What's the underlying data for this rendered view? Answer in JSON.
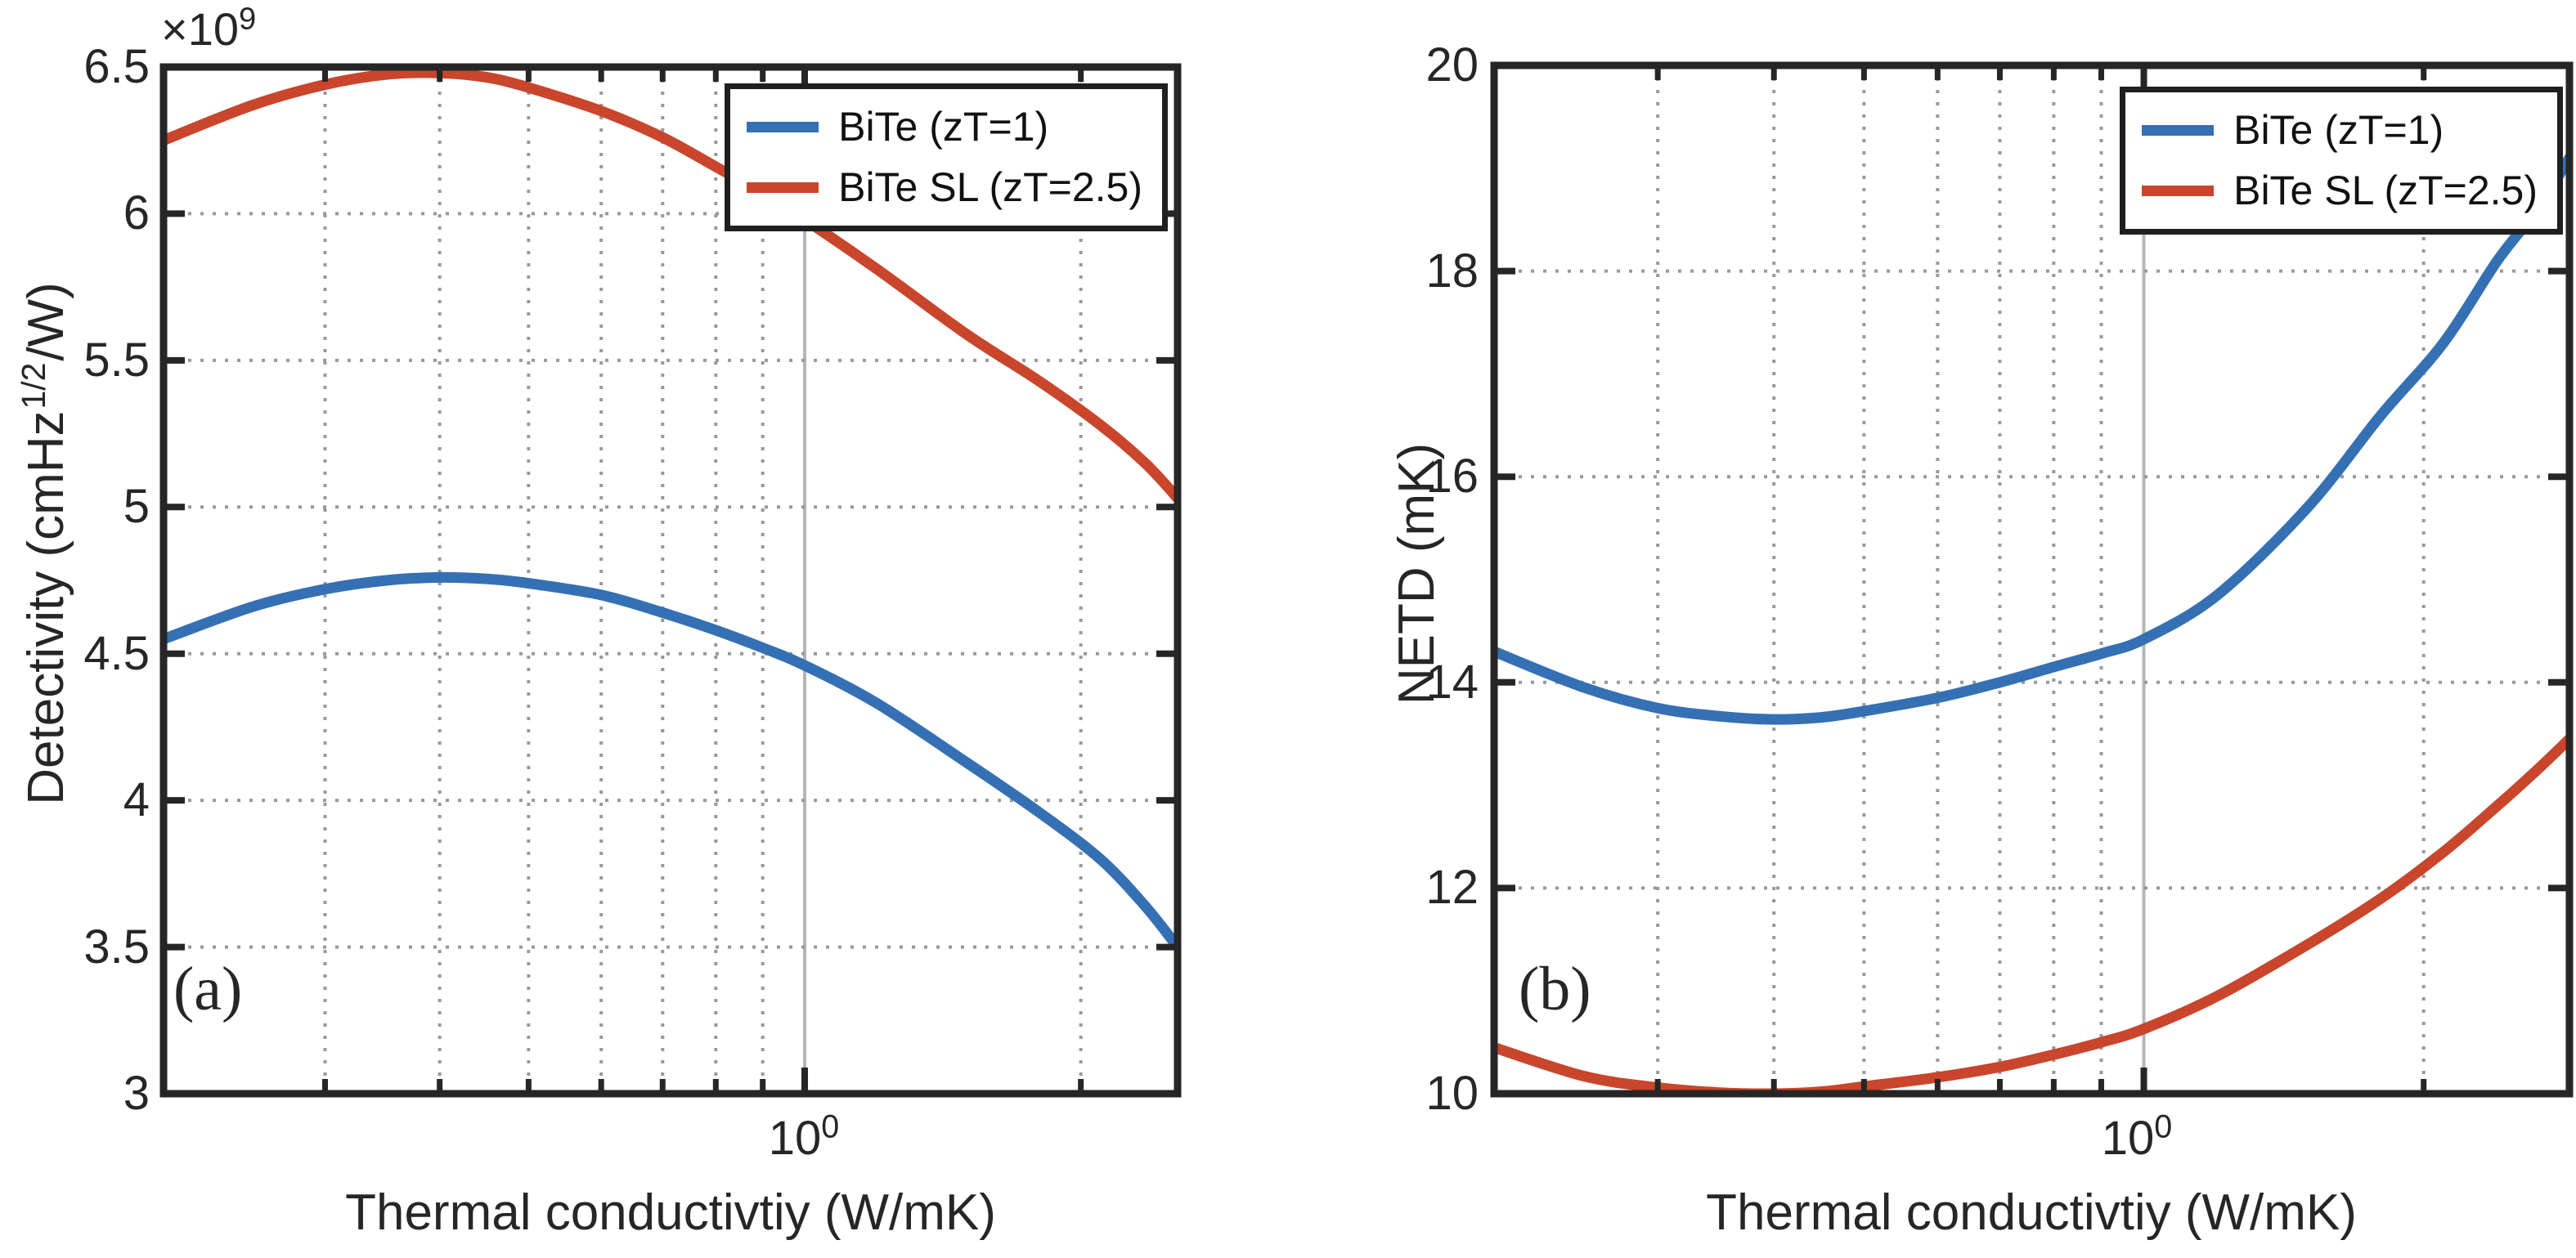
{
  "figure": {
    "background": "#ffffff",
    "axis_color": "#262626",
    "grid_color": "#999999",
    "major_grid_color": "#b5b5b5"
  },
  "chart_data": {
    "type": "line",
    "xscale": "log",
    "grid": true,
    "legend": {
      "position": "top-right",
      "items": [
        {
          "label": "BiTe (zT=1)",
          "color": "#3570B4"
        },
        {
          "label": "BiTe SL (zT=2.5)",
          "color": "#C9452C"
        }
      ]
    },
    "panels": [
      {
        "id": "a",
        "panel_label": "(a)",
        "xlabel": "Thermal conductivtiy (W/mK)",
        "ylabel_prefix": "Detectivity (cmHz",
        "ylabel_sup": "1/2",
        "ylabel_suffix": "/W)",
        "y_exponent_base": "×10",
        "y_exponent_sup": "9",
        "xtick_base": "10",
        "xtick_sup": "0",
        "xlim": [
          0.2,
          2.55
        ],
        "ylim": [
          3,
          6.5
        ],
        "yticks": [
          3,
          3.5,
          4,
          4.5,
          5,
          5.5,
          6,
          6.5
        ],
        "ytick_labels": [
          "3",
          "3.5",
          "4",
          "4.5",
          "5",
          "5.5",
          "6",
          "6.5"
        ],
        "xticks_minor": [
          0.3,
          0.4,
          0.5,
          0.6,
          0.7,
          0.8,
          0.9,
          2
        ],
        "xtick_major": 1,
        "series": [
          {
            "name": "BiTe (zT=1)",
            "color": "#3570B4",
            "points": [
              [
                0.2,
                4.55
              ],
              [
                0.25,
                4.66
              ],
              [
                0.3,
                4.72
              ],
              [
                0.35,
                4.75
              ],
              [
                0.4,
                4.76
              ],
              [
                0.45,
                4.755
              ],
              [
                0.5,
                4.74
              ],
              [
                0.6,
                4.7
              ],
              [
                0.7,
                4.64
              ],
              [
                0.8,
                4.58
              ],
              [
                0.9,
                4.52
              ],
              [
                1.0,
                4.46
              ],
              [
                1.2,
                4.33
              ],
              [
                1.5,
                4.13
              ],
              [
                1.8,
                3.96
              ],
              [
                2.1,
                3.8
              ],
              [
                2.35,
                3.64
              ],
              [
                2.55,
                3.5
              ]
            ]
          },
          {
            "name": "BiTe SL (zT=2.5)",
            "color": "#C9452C",
            "points": [
              [
                0.2,
                6.25
              ],
              [
                0.25,
                6.37
              ],
              [
                0.3,
                6.44
              ],
              [
                0.35,
                6.475
              ],
              [
                0.4,
                6.48
              ],
              [
                0.45,
                6.465
              ],
              [
                0.5,
                6.43
              ],
              [
                0.6,
                6.35
              ],
              [
                0.7,
                6.26
              ],
              [
                0.8,
                6.16
              ],
              [
                0.9,
                6.07
              ],
              [
                1.0,
                5.98
              ],
              [
                1.2,
                5.81
              ],
              [
                1.5,
                5.59
              ],
              [
                1.8,
                5.43
              ],
              [
                2.1,
                5.28
              ],
              [
                2.35,
                5.15
              ],
              [
                2.55,
                5.03
              ]
            ]
          }
        ]
      },
      {
        "id": "b",
        "panel_label": "(b)",
        "xlabel": "Thermal conductivtiy (W/mK)",
        "ylabel_prefix": "NETD (mK)",
        "ylabel_sup": "",
        "ylabel_suffix": "",
        "xtick_base": "10",
        "xtick_sup": "0",
        "xlim": [
          0.2,
          2.87
        ],
        "ylim": [
          10,
          20
        ],
        "yticks": [
          10,
          12,
          14,
          16,
          18,
          20
        ],
        "ytick_labels": [
          "10",
          "12",
          "14",
          "16",
          "18",
          "20"
        ],
        "xticks_minor": [
          0.3,
          0.4,
          0.5,
          0.6,
          0.7,
          0.8,
          0.9,
          2
        ],
        "xtick_major": 1,
        "series": [
          {
            "name": "BiTe (zT=1)",
            "color": "#3570B4",
            "points": [
              [
                0.2,
                14.3
              ],
              [
                0.25,
                13.95
              ],
              [
                0.3,
                13.75
              ],
              [
                0.35,
                13.67
              ],
              [
                0.4,
                13.64
              ],
              [
                0.45,
                13.66
              ],
              [
                0.5,
                13.72
              ],
              [
                0.6,
                13.85
              ],
              [
                0.7,
                14.0
              ],
              [
                0.8,
                14.15
              ],
              [
                0.9,
                14.28
              ],
              [
                1.0,
                14.42
              ],
              [
                1.2,
                14.85
              ],
              [
                1.5,
                15.7
              ],
              [
                1.8,
                16.6
              ],
              [
                2.1,
                17.3
              ],
              [
                2.4,
                18.1
              ],
              [
                2.65,
                18.6
              ],
              [
                2.87,
                19.1
              ]
            ]
          },
          {
            "name": "BiTe SL (zT=2.5)",
            "color": "#C9452C",
            "points": [
              [
                0.2,
                10.45
              ],
              [
                0.25,
                10.17
              ],
              [
                0.3,
                10.06
              ],
              [
                0.35,
                10.01
              ],
              [
                0.4,
                10.0
              ],
              [
                0.45,
                10.02
              ],
              [
                0.5,
                10.07
              ],
              [
                0.6,
                10.16
              ],
              [
                0.7,
                10.26
              ],
              [
                0.8,
                10.38
              ],
              [
                0.9,
                10.5
              ],
              [
                1.0,
                10.63
              ],
              [
                1.2,
                10.95
              ],
              [
                1.5,
                11.45
              ],
              [
                1.8,
                11.9
              ],
              [
                2.1,
                12.35
              ],
              [
                2.4,
                12.8
              ],
              [
                2.65,
                13.15
              ],
              [
                2.87,
                13.45
              ]
            ]
          }
        ]
      }
    ]
  }
}
